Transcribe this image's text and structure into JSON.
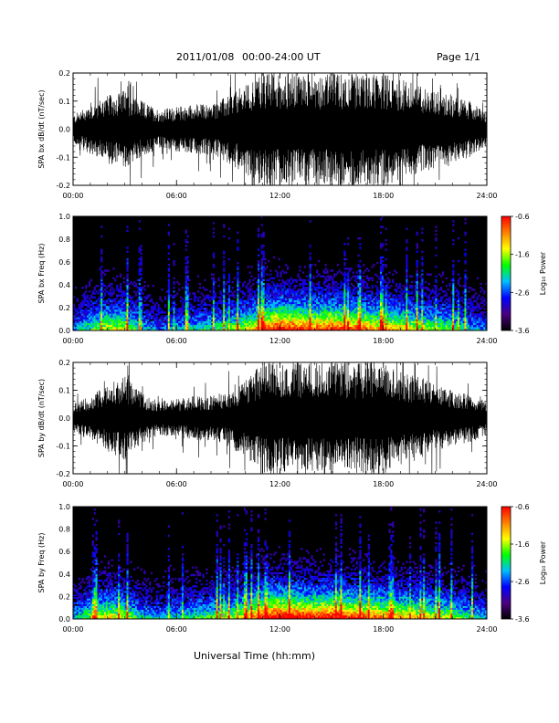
{
  "header": {
    "date": "2011/01/08",
    "time_range": "00:00-24:00 UT",
    "page": "Page 1/1"
  },
  "footer": {
    "xlabel": "Universal Time (hh:mm)"
  },
  "colorbar": {
    "label": "Log₁₀ Power",
    "ticks": [
      "-0.6",
      "-1.6",
      "-2.6",
      "-3.6"
    ],
    "values": [
      -0.6,
      -1.6,
      -2.6,
      -3.6
    ],
    "range": [
      -3.6,
      -0.6
    ],
    "colors": [
      "#000000",
      "#4b0082",
      "#0000ff",
      "#00bfff",
      "#00ff00",
      "#ffff00",
      "#ff8000",
      "#ff0000"
    ]
  },
  "chart_data": [
    {
      "type": "line",
      "ylabel": "SPA bx dB/dt (nT/sec)",
      "ylim": [
        -0.2,
        0.2
      ],
      "yticks": [
        "0.2",
        "0.1",
        "0.0",
        "-0.1",
        "-0.2"
      ],
      "ytick_values": [
        0.2,
        0.1,
        0.0,
        -0.1,
        -0.2
      ],
      "xticks": [
        "00:00",
        "06:00",
        "12:00",
        "18:00",
        "24:00"
      ],
      "xlim_hours": [
        0,
        24
      ],
      "envelope": {
        "x_hours": [
          0,
          1,
          2,
          3,
          4,
          5,
          6,
          7,
          8,
          9,
          10,
          11,
          12,
          13,
          14,
          15,
          16,
          17,
          18,
          19,
          20,
          21,
          22,
          23,
          24
        ],
        "amplitude": [
          0.05,
          0.09,
          0.12,
          0.14,
          0.1,
          0.07,
          0.08,
          0.09,
          0.09,
          0.12,
          0.16,
          0.2,
          0.2,
          0.2,
          0.2,
          0.2,
          0.2,
          0.2,
          0.2,
          0.18,
          0.16,
          0.14,
          0.12,
          0.1,
          0.06
        ]
      }
    },
    {
      "type": "heatmap",
      "ylabel": "SPA bx Freq (Hz)",
      "ylim": [
        0.0,
        1.0
      ],
      "yticks": [
        "1.0",
        "0.8",
        "0.6",
        "0.4",
        "0.2",
        "0.0"
      ],
      "ytick_values": [
        1.0,
        0.8,
        0.6,
        0.4,
        0.2,
        0.0
      ],
      "xticks": [
        "00:00",
        "06:00",
        "12:00",
        "18:00",
        "24:00"
      ],
      "xlim_hours": [
        0,
        24
      ],
      "activity": {
        "x_hours": [
          0,
          1,
          2,
          3,
          4,
          5,
          6,
          7,
          8,
          9,
          10,
          11,
          12,
          13,
          14,
          15,
          16,
          17,
          18,
          19,
          20,
          21,
          22,
          23,
          24
        ],
        "level": [
          0.3,
          0.5,
          0.6,
          0.6,
          0.4,
          0.3,
          0.35,
          0.4,
          0.45,
          0.5,
          0.6,
          0.8,
          0.9,
          0.85,
          0.8,
          0.85,
          0.8,
          0.75,
          0.7,
          0.65,
          0.6,
          0.55,
          0.5,
          0.4,
          0.3
        ]
      }
    },
    {
      "type": "line",
      "ylabel": "SPA by dB/dt (nT/sec)",
      "ylim": [
        -0.2,
        0.2
      ],
      "yticks": [
        "0.2",
        "0.1",
        "0.0",
        "-0.1",
        "-0.2"
      ],
      "ytick_values": [
        0.2,
        0.1,
        0.0,
        -0.1,
        -0.2
      ],
      "xticks": [
        "00:00",
        "06:00",
        "12:00",
        "18:00",
        "24:00"
      ],
      "xlim_hours": [
        0,
        24
      ],
      "envelope": {
        "x_hours": [
          0,
          1,
          2,
          3,
          4,
          5,
          6,
          7,
          8,
          9,
          10,
          11,
          12,
          13,
          14,
          15,
          16,
          17,
          18,
          19,
          20,
          21,
          22,
          23,
          24
        ],
        "amplitude": [
          0.05,
          0.08,
          0.12,
          0.15,
          0.09,
          0.06,
          0.07,
          0.08,
          0.08,
          0.1,
          0.14,
          0.2,
          0.2,
          0.2,
          0.2,
          0.2,
          0.2,
          0.2,
          0.2,
          0.17,
          0.15,
          0.12,
          0.1,
          0.09,
          0.06
        ]
      }
    },
    {
      "type": "heatmap",
      "ylabel": "SPA by Freq (Hz)",
      "ylim": [
        0.0,
        1.0
      ],
      "yticks": [
        "1.0",
        "0.8",
        "0.6",
        "0.4",
        "0.2",
        "0.0"
      ],
      "ytick_values": [
        1.0,
        0.8,
        0.6,
        0.4,
        0.2,
        0.0
      ],
      "xticks": [
        "00:00",
        "06:00",
        "12:00",
        "18:00",
        "24:00"
      ],
      "xlim_hours": [
        0,
        24
      ],
      "activity": {
        "x_hours": [
          0,
          1,
          2,
          3,
          4,
          5,
          6,
          7,
          8,
          9,
          10,
          11,
          12,
          13,
          14,
          15,
          16,
          17,
          18,
          19,
          20,
          21,
          22,
          23,
          24
        ],
        "level": [
          0.35,
          0.55,
          0.65,
          0.6,
          0.4,
          0.35,
          0.4,
          0.45,
          0.5,
          0.55,
          0.65,
          0.85,
          0.95,
          0.9,
          0.85,
          0.9,
          0.85,
          0.8,
          0.75,
          0.7,
          0.65,
          0.6,
          0.55,
          0.45,
          0.35
        ]
      }
    }
  ]
}
